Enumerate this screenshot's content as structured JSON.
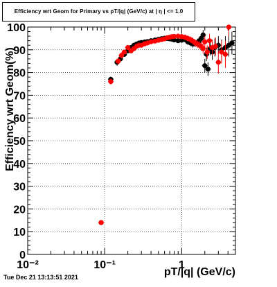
{
  "title": "Efficiency wrt Geom for Primary vs pT/|q| (GeV/c) at |  η | <= 1.0",
  "footer": "Tue Dec 21 13:13:51 2021",
  "colors": {
    "series_black": "#000000",
    "series_red": "#ff0000",
    "grid": "#000000",
    "axis": "#000000"
  },
  "chart_data": {
    "type": "scatter",
    "xlabel": "pT/|q| (GeV/c)",
    "ylabel": "Efficiency wrt Geom(%)",
    "xscale": "log",
    "xlim": [
      0.01,
      5.0
    ],
    "ylim": [
      0,
      100
    ],
    "grid": true,
    "x_tick_labels": [
      "10⁻²",
      "10⁻¹",
      "1"
    ],
    "y_tick_labels": [
      "0",
      "10",
      "20",
      "30",
      "40",
      "50",
      "60",
      "70",
      "80",
      "90",
      "100"
    ],
    "series": [
      {
        "color": "#000000",
        "points": [
          [
            0.09,
            14.0,
            0.8
          ],
          [
            0.12,
            77.0,
            1.2
          ],
          [
            0.145,
            84.5,
            1.5
          ],
          [
            0.16,
            86.0,
            1.3
          ],
          [
            0.18,
            88.0,
            1.0
          ],
          [
            0.2,
            89.5,
            1.0
          ],
          [
            0.22,
            91.0,
            0.9
          ],
          [
            0.24,
            92.0,
            0.8
          ],
          [
            0.26,
            92.5,
            0.8
          ],
          [
            0.28,
            93.0,
            0.8
          ],
          [
            0.3,
            93.2,
            0.8
          ],
          [
            0.33,
            93.4,
            0.8
          ],
          [
            0.36,
            93.6,
            0.8
          ],
          [
            0.4,
            94.0,
            0.8
          ],
          [
            0.45,
            94.3,
            0.8
          ],
          [
            0.5,
            94.6,
            0.8
          ],
          [
            0.55,
            94.9,
            0.8
          ],
          [
            0.6,
            95.1,
            0.8
          ],
          [
            0.65,
            95.0,
            0.8
          ],
          [
            0.7,
            94.8,
            0.9
          ],
          [
            0.75,
            94.6,
            0.9
          ],
          [
            0.8,
            94.3,
            1.0
          ],
          [
            0.9,
            94.0,
            1.0
          ],
          [
            1.0,
            94.2,
            1.1
          ],
          [
            1.1,
            94.5,
            1.2
          ],
          [
            1.2,
            93.5,
            1.3
          ],
          [
            1.3,
            93.0,
            1.4
          ],
          [
            1.4,
            92.5,
            1.5
          ],
          [
            1.5,
            92.8,
            1.6
          ],
          [
            1.6,
            93.2,
            1.7
          ],
          [
            1.7,
            94.0,
            1.8
          ],
          [
            1.8,
            95.0,
            2.0
          ],
          [
            1.9,
            96.5,
            2.2
          ],
          [
            2.0,
            83.0,
            3.0
          ],
          [
            2.1,
            88.0,
            3.0
          ],
          [
            2.2,
            81.5,
            3.0
          ],
          [
            2.35,
            90.5,
            3.0
          ],
          [
            2.5,
            89.0,
            3.5
          ],
          [
            2.7,
            91.0,
            4.0
          ],
          [
            3.0,
            92.0,
            4.0
          ],
          [
            3.3,
            90.0,
            4.5
          ],
          [
            3.7,
            91.0,
            5.0
          ],
          [
            4.1,
            92.0,
            5.0
          ],
          [
            4.5,
            93.0,
            5.0
          ]
        ]
      },
      {
        "color": "#ff0000",
        "points": [
          [
            0.09,
            14.0,
            0.8
          ],
          [
            0.12,
            76.0,
            1.2
          ],
          [
            0.15,
            85.0,
            1.5
          ],
          [
            0.165,
            87.5,
            1.3
          ],
          [
            0.18,
            89.0,
            1.0
          ],
          [
            0.2,
            91.0,
            1.0
          ],
          [
            0.22,
            89.5,
            1.0
          ],
          [
            0.24,
            90.5,
            0.9
          ],
          [
            0.26,
            91.5,
            0.9
          ],
          [
            0.28,
            92.0,
            0.8
          ],
          [
            0.3,
            92.0,
            0.8
          ],
          [
            0.33,
            92.6,
            0.8
          ],
          [
            0.36,
            93.0,
            0.8
          ],
          [
            0.4,
            93.5,
            0.8
          ],
          [
            0.45,
            93.8,
            0.8
          ],
          [
            0.5,
            94.2,
            0.8
          ],
          [
            0.55,
            94.5,
            0.8
          ],
          [
            0.6,
            94.8,
            0.8
          ],
          [
            0.65,
            95.3,
            0.8
          ],
          [
            0.7,
            95.5,
            0.9
          ],
          [
            0.75,
            95.8,
            0.9
          ],
          [
            0.8,
            95.9,
            1.0
          ],
          [
            0.9,
            96.0,
            1.0
          ],
          [
            1.0,
            95.8,
            1.1
          ],
          [
            1.1,
            95.5,
            1.2
          ],
          [
            1.2,
            95.0,
            1.3
          ],
          [
            1.3,
            94.5,
            1.4
          ],
          [
            1.4,
            93.8,
            1.5
          ],
          [
            1.5,
            93.0,
            1.6
          ],
          [
            1.6,
            92.5,
            1.7
          ],
          [
            1.7,
            92.0,
            1.8
          ],
          [
            1.8,
            91.5,
            2.0
          ],
          [
            1.9,
            90.5,
            2.2
          ],
          [
            2.0,
            93.5,
            2.5
          ],
          [
            2.15,
            89.0,
            3.0
          ],
          [
            2.3,
            94.0,
            3.0
          ],
          [
            2.5,
            91.0,
            3.5
          ],
          [
            2.75,
            91.5,
            4.0
          ],
          [
            3.0,
            84.5,
            5.0
          ],
          [
            3.3,
            89.0,
            5.0
          ],
          [
            3.7,
            88.0,
            6.0
          ],
          [
            4.1,
            100.0,
            4.0
          ]
        ]
      }
    ]
  }
}
